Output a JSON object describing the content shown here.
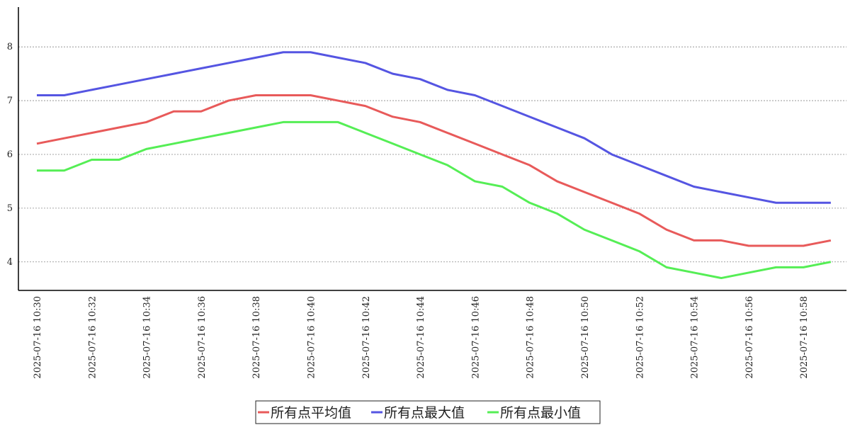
{
  "chart_data": {
    "type": "line",
    "categories": [
      "2025-07-16 10:30",
      null,
      "2025-07-16 10:32",
      null,
      "2025-07-16 10:34",
      null,
      "2025-07-16 10:36",
      null,
      "2025-07-16 10:38",
      null,
      "2025-07-16 10:40",
      null,
      "2025-07-16 10:42",
      null,
      "2025-07-16 10:44",
      null,
      "2025-07-16 10:46",
      null,
      "2025-07-16 10:48",
      null,
      "2025-07-16 10:50",
      null,
      "2025-07-16 10:52",
      null,
      "2025-07-16 10:54",
      null,
      "2025-07-16 10:56",
      null,
      "2025-07-16 10:58",
      null
    ],
    "series": [
      {
        "name": "所有点平均值",
        "color": "#e85a5a",
        "values": [
          6.2,
          6.3,
          6.4,
          6.5,
          6.6,
          6.8,
          6.8,
          7.0,
          7.1,
          7.1,
          7.1,
          7.0,
          6.9,
          6.7,
          6.6,
          6.4,
          6.2,
          6.0,
          5.8,
          5.5,
          5.3,
          5.1,
          4.9,
          4.6,
          4.4,
          4.4,
          4.3,
          4.3,
          4.3,
          4.4
        ]
      },
      {
        "name": "所有点最大值",
        "color": "#5555e2",
        "values": [
          7.1,
          7.1,
          7.2,
          7.3,
          7.4,
          7.5,
          7.6,
          7.7,
          7.8,
          7.9,
          7.9,
          7.8,
          7.7,
          7.5,
          7.4,
          7.2,
          7.1,
          6.9,
          6.7,
          6.5,
          6.3,
          6.0,
          5.8,
          5.6,
          5.4,
          5.3,
          5.2,
          5.1,
          5.1,
          5.1
        ]
      },
      {
        "name": "所有点最小值",
        "color": "#55ee55",
        "values": [
          5.7,
          5.7,
          5.9,
          5.9,
          6.1,
          6.2,
          6.3,
          6.4,
          6.5,
          6.6,
          6.6,
          6.6,
          6.4,
          6.2,
          6.0,
          5.8,
          5.5,
          5.4,
          5.1,
          4.9,
          4.6,
          4.4,
          4.2,
          3.9,
          3.8,
          3.7,
          3.8,
          3.9,
          3.9,
          4.0
        ]
      }
    ],
    "ylim": [
      3.47,
      8.74
    ],
    "yticks": [
      4,
      5,
      6,
      7,
      8
    ],
    "grid": true
  }
}
